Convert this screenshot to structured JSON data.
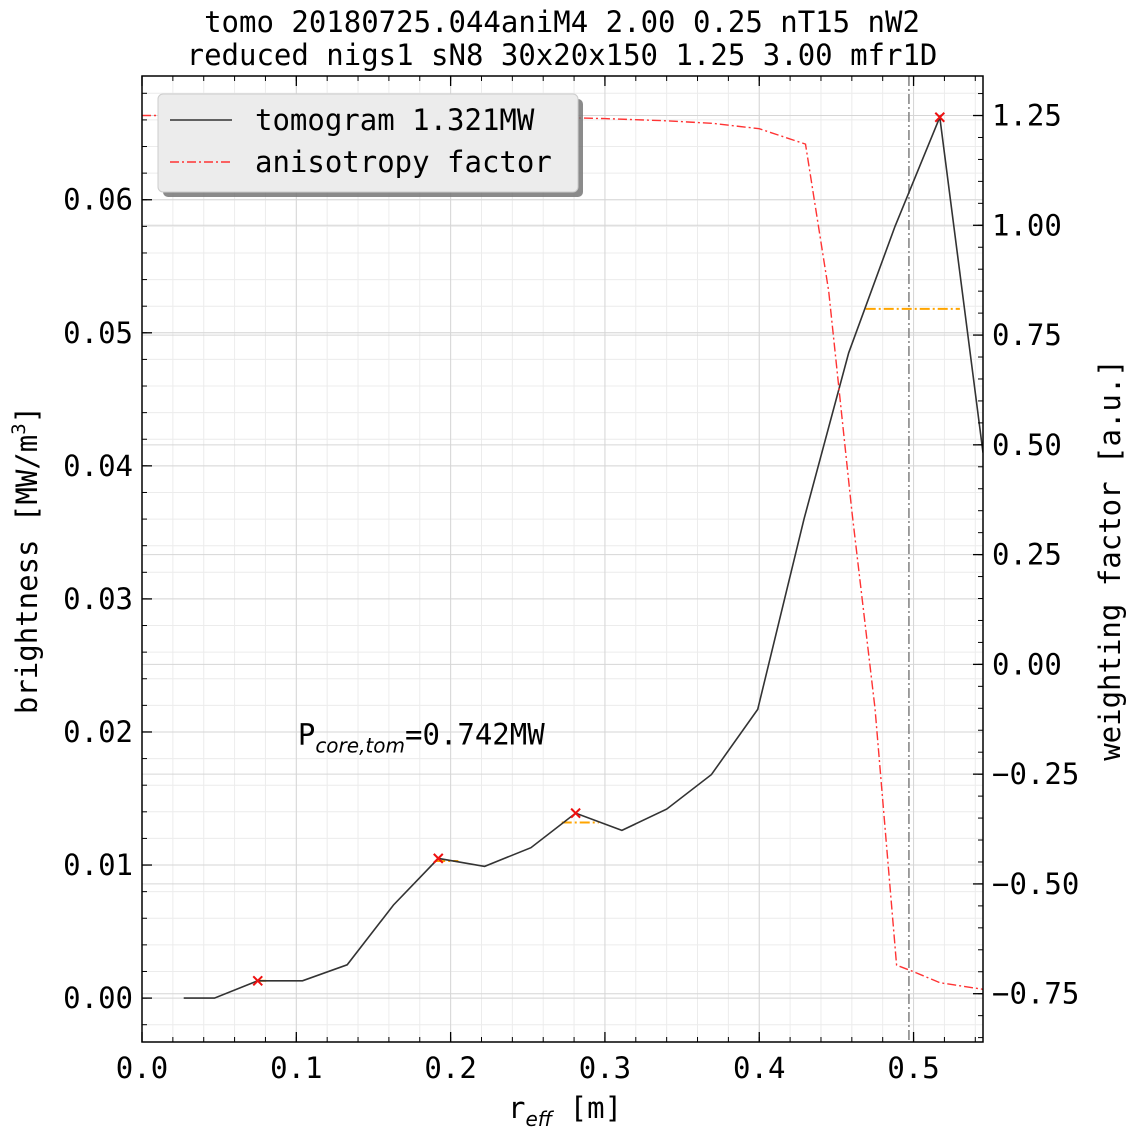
{
  "chart_data": {
    "type": "line",
    "title": [
      "tomo 20180725.044aniM4 2.00 0.25 nT15 nW2",
      "reduced nigs1 sN8 30x20x150 1.25 3.00 mfr1D"
    ],
    "xlabel_main": "r",
    "xlabel_sub": "eff",
    "xlabel_unit": " [m]",
    "ylabel": "brightness [MW/m³]",
    "ylabel_main": "brightness [MW/m",
    "ylabel_sup": "3",
    "ylabel_close": "]",
    "y2label": "weighting factor [a.u.]",
    "xlim": [
      0.0,
      0.545
    ],
    "ylim": [
      -0.0033,
      0.0693
    ],
    "y2lim": [
      -0.86,
      1.34
    ],
    "xticks": [
      0.0,
      0.1,
      0.2,
      0.3,
      0.4,
      0.5
    ],
    "xtick_labels": [
      "0.0",
      "0.1",
      "0.2",
      "0.3",
      "0.4",
      "0.5"
    ],
    "yticks": [
      0.0,
      0.01,
      0.02,
      0.03,
      0.04,
      0.05,
      0.06
    ],
    "ytick_labels": [
      "0.00",
      "0.01",
      "0.02",
      "0.03",
      "0.04",
      "0.05",
      "0.06"
    ],
    "y2ticks": [
      -0.75,
      -0.5,
      -0.25,
      0.0,
      0.25,
      0.5,
      0.75,
      1.0,
      1.25
    ],
    "y2tick_labels": [
      "−0.75",
      "−0.50",
      "−0.25",
      "0.00",
      "0.25",
      "0.50",
      "0.75",
      "1.00",
      "1.25"
    ],
    "grid": true,
    "legend_position": "top-left",
    "series": [
      {
        "name": "tomogram 1.321MW",
        "axis": "left",
        "style": "solid",
        "color": "#333333",
        "x": [
          0.027,
          0.047,
          0.075,
          0.104,
          0.133,
          0.163,
          0.192,
          0.222,
          0.252,
          0.281,
          0.311,
          0.34,
          0.369,
          0.399,
          0.429,
          0.458,
          0.488,
          0.517,
          0.545
        ],
        "y": [
          0.0,
          0.0,
          0.0013,
          0.0013,
          0.0025,
          0.007,
          0.0105,
          0.0099,
          0.0113,
          0.0139,
          0.0126,
          0.0142,
          0.0168,
          0.0217,
          0.036,
          0.0485,
          0.058,
          0.0662,
          0.041
        ]
      },
      {
        "name": "anisotropy factor",
        "axis": "right",
        "style": "dashdot",
        "color": "#ff3333",
        "x": [
          0.0,
          0.1,
          0.2,
          0.25,
          0.3,
          0.34,
          0.37,
          0.4,
          0.43,
          0.445,
          0.46,
          0.475,
          0.489,
          0.5,
          0.517,
          0.545
        ],
        "y": [
          1.25,
          1.25,
          1.25,
          1.247,
          1.243,
          1.238,
          1.232,
          1.22,
          1.185,
          0.85,
          0.35,
          -0.1,
          -0.685,
          -0.7,
          -0.725,
          -0.74
        ]
      }
    ],
    "peak_markers": {
      "color": "#ee1111",
      "x": [
        0.075,
        0.192,
        0.281,
        0.517
      ],
      "y": [
        0.0013,
        0.0105,
        0.0139,
        0.0662
      ]
    },
    "orange_segments": {
      "color": "#ffa500",
      "items": [
        {
          "x": [
            0.074,
            0.082
          ],
          "y": 0.0013
        },
        {
          "x": [
            0.19,
            0.205
          ],
          "y": 0.0103
        },
        {
          "x": [
            0.272,
            0.296
          ],
          "y": 0.0132
        },
        {
          "x": [
            0.469,
            0.53
          ],
          "y": 0.0518
        }
      ]
    },
    "vline": {
      "x": 0.497,
      "color": "#888888",
      "style": "dashdot"
    },
    "annotation": {
      "main": "P",
      "sub": "core,tom",
      "rest": "=0.742MW",
      "x": 0.101,
      "y": 0.0198
    }
  }
}
